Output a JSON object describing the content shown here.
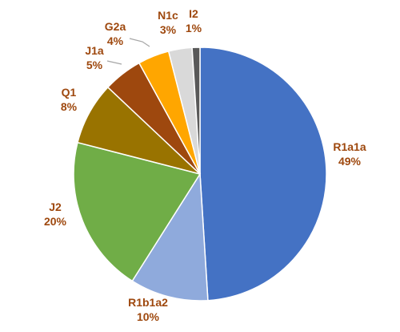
{
  "chart_data": {
    "type": "pie",
    "title": "",
    "start_angle_deg": 0,
    "direction": "clockwise",
    "slices": [
      {
        "label": "R1a1a",
        "value": 49,
        "value_label": "49%",
        "color": "#4472c4"
      },
      {
        "label": "R1b1a2",
        "value": 10,
        "value_label": "10%",
        "color": "#8faadc"
      },
      {
        "label": "J2",
        "value": 20,
        "value_label": "20%",
        "color": "#70ad47"
      },
      {
        "label": "Q1",
        "value": 8,
        "value_label": "8%",
        "color": "#997300"
      },
      {
        "label": "J1a",
        "value": 5,
        "value_label": "5%",
        "color": "#9e480e"
      },
      {
        "label": "G2a",
        "value": 4,
        "value_label": "4%",
        "color": "#ffa600"
      },
      {
        "label": "N1c",
        "value": 3,
        "value_label": "3%",
        "color": "#d9d9d9"
      },
      {
        "label": "I2",
        "value": 1,
        "value_label": "1%",
        "color": "#595959"
      }
    ],
    "label_color": "#9e480e",
    "leader_line_color": "#a6a6a6",
    "legend": "none"
  }
}
